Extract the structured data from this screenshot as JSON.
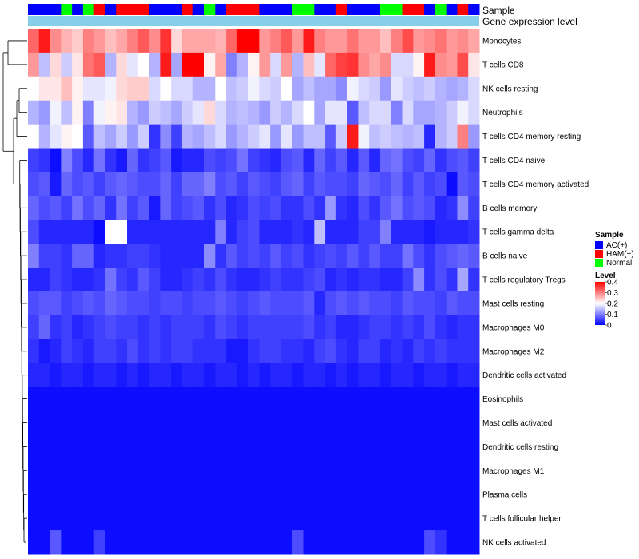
{
  "chart_data": {
    "type": "heatmap",
    "title": "",
    "annotations": {
      "sample_label": "Sample",
      "gene_label": "Gene expression level"
    },
    "sample_groups": [
      "AC",
      "AC",
      "AC",
      "Normal",
      "AC",
      "Normal",
      "HAM",
      "AC",
      "HAM",
      "HAM",
      "HAM",
      "AC",
      "AC",
      "AC",
      "HAM",
      "AC",
      "Normal",
      "AC",
      "HAM",
      "HAM",
      "HAM",
      "AC",
      "AC",
      "AC",
      "Normal",
      "Normal",
      "AC",
      "AC",
      "HAM",
      "AC",
      "AC",
      "AC",
      "Normal",
      "Normal",
      "HAM",
      "HAM",
      "AC",
      "Normal",
      "AC",
      "HAM",
      "AC"
    ],
    "sample_colors": {
      "AC": "#0000ff",
      "HAM": "#ff0000",
      "Normal": "#00ff00"
    },
    "gene_expression_color": "#87ceeb",
    "rows": [
      "Monocytes",
      "T cells CD8",
      "NK cells resting",
      "Neutrophils",
      "T cells CD4 memory resting",
      "T cells CD4 naive",
      "T cells CD4 memory activated",
      "B cells memory",
      "T cells gamma delta",
      "B cells naive",
      "T cells regulatory  Tregs",
      "Mast cells resting",
      "Macrophages M0",
      "Macrophages M2",
      "Dendritic cells activated",
      "Eosinophils",
      "Mast cells activated",
      "Dendritic cells resting",
      "Macrophages M1",
      "Plasma cells",
      "T cells follicular helper",
      "NK cells activated"
    ],
    "values": [
      [
        0.32,
        0.38,
        0.29,
        0.26,
        0.24,
        0.3,
        0.28,
        0.25,
        0.27,
        0.3,
        0.33,
        0.29,
        0.36,
        0.23,
        0.27,
        0.27,
        0.27,
        0.26,
        0.32,
        0.4,
        0.4,
        0.28,
        0.3,
        0.33,
        0.28,
        0.38,
        0.3,
        0.28,
        0.28,
        0.31,
        0.28,
        0.28,
        0.25,
        0.3,
        0.34,
        0.28,
        0.29,
        0.31,
        0.28,
        0.29,
        0.27
      ],
      [
        0.28,
        0.15,
        0.23,
        0.16,
        0.22,
        0.31,
        0.33,
        0.14,
        0.23,
        0.18,
        0.2,
        0.14,
        0.38,
        0.13,
        0.4,
        0.4,
        0.21,
        0.27,
        0.1,
        0.14,
        0.21,
        0.28,
        0.17,
        0.28,
        0.14,
        0.25,
        0.18,
        0.32,
        0.35,
        0.36,
        0.29,
        0.27,
        0.29,
        0.17,
        0.17,
        0.21,
        0.38,
        0.29,
        0.28,
        0.34,
        0.22
      ],
      [
        0.2,
        0.22,
        0.22,
        0.25,
        0.21,
        0.18,
        0.18,
        0.19,
        0.23,
        0.24,
        0.24,
        0.17,
        0.2,
        0.17,
        0.17,
        0.14,
        0.14,
        0.2,
        0.15,
        0.16,
        0.19,
        0.17,
        0.16,
        0.2,
        0.13,
        0.15,
        0.13,
        0.13,
        0.11,
        0.19,
        0.17,
        0.16,
        0.12,
        0.18,
        0.16,
        0.15,
        0.16,
        0.14,
        0.13,
        0.14,
        0.17
      ],
      [
        0.14,
        0.12,
        0.19,
        0.15,
        0.21,
        0.1,
        0.19,
        0.21,
        0.22,
        0.14,
        0.12,
        0.16,
        0.15,
        0.13,
        0.16,
        0.18,
        0.23,
        0.17,
        0.14,
        0.15,
        0.14,
        0.12,
        0.16,
        0.14,
        0.17,
        0.2,
        0.13,
        0.18,
        0.18,
        0.07,
        0.15,
        0.17,
        0.17,
        0.1,
        0.17,
        0.13,
        0.13,
        0.14,
        0.16,
        0.19,
        0.17
      ],
      [
        0.2,
        0.14,
        0.18,
        0.21,
        0.2,
        0.07,
        0.15,
        0.13,
        0.16,
        0.12,
        0.16,
        0.04,
        0.11,
        0.05,
        0.14,
        0.13,
        0.15,
        0.17,
        0.12,
        0.14,
        0.16,
        0.18,
        0.12,
        0.18,
        0.12,
        0.15,
        0.15,
        0.07,
        0.16,
        0.38,
        0.19,
        0.15,
        0.16,
        0.15,
        0.14,
        0.15,
        0.03,
        0.14,
        0.16,
        0.3,
        0.12
      ],
      [
        0.05,
        0.04,
        0.01,
        0.1,
        0.06,
        0.03,
        0.09,
        0.04,
        0.02,
        0.08,
        0.04,
        0.05,
        0.07,
        0.02,
        0.03,
        0.03,
        0.06,
        0.05,
        0.06,
        0.09,
        0.05,
        0.04,
        0.03,
        0.06,
        0.07,
        0.03,
        0.08,
        0.05,
        0.07,
        0.03,
        0.07,
        0.03,
        0.08,
        0.09,
        0.06,
        0.05,
        0.08,
        0.04,
        0.06,
        0.07,
        0.05
      ],
      [
        0.06,
        0.07,
        0.02,
        0.08,
        0.06,
        0.07,
        0.05,
        0.07,
        0.08,
        0.07,
        0.06,
        0.06,
        0.08,
        0.05,
        0.08,
        0.08,
        0.1,
        0.06,
        0.07,
        0.05,
        0.07,
        0.06,
        0.05,
        0.07,
        0.08,
        0.05,
        0.07,
        0.06,
        0.06,
        0.05,
        0.08,
        0.07,
        0.06,
        0.08,
        0.05,
        0.07,
        0.05,
        0.06,
        0.01,
        0.07,
        0.06
      ],
      [
        0.08,
        0.06,
        0.07,
        0.05,
        0.09,
        0.06,
        0.08,
        0.04,
        0.09,
        0.05,
        0.07,
        0.02,
        0.08,
        0.05,
        0.06,
        0.07,
        0.04,
        0.06,
        0.03,
        0.04,
        0.06,
        0.05,
        0.06,
        0.04,
        0.04,
        0.06,
        0.04,
        0.12,
        0.04,
        0.03,
        0.06,
        0.04,
        0.07,
        0.09,
        0.06,
        0.07,
        0.06,
        0.03,
        0.04,
        0.11,
        0.05
      ],
      [
        0.06,
        0.03,
        0.03,
        0.03,
        0.03,
        0.03,
        0.01,
        0.2,
        0.2,
        0.03,
        0.03,
        0.03,
        0.03,
        0.03,
        0.03,
        0.03,
        0.03,
        0.1,
        0.03,
        0.05,
        0.06,
        0.03,
        0.03,
        0.03,
        0.04,
        0.03,
        0.15,
        0.03,
        0.03,
        0.03,
        0.05,
        0.05,
        0.1,
        0.03,
        0.03,
        0.03,
        0.02,
        0.03,
        0.03,
        0.03,
        0.04
      ],
      [
        0.1,
        0.05,
        0.05,
        0.04,
        0.08,
        0.08,
        0.03,
        0.04,
        0.04,
        0.05,
        0.05,
        0.04,
        0.03,
        0.03,
        0.03,
        0.03,
        0.11,
        0.04,
        0.07,
        0.05,
        0.06,
        0.05,
        0.07,
        0.05,
        0.06,
        0.04,
        0.05,
        0.06,
        0.05,
        0.07,
        0.05,
        0.07,
        0.05,
        0.05,
        0.09,
        0.06,
        0.04,
        0.06,
        0.07,
        0.08,
        0.07
      ],
      [
        0.03,
        0.03,
        0.05,
        0.04,
        0.03,
        0.03,
        0.04,
        0.09,
        0.05,
        0.04,
        0.07,
        0.05,
        0.03,
        0.03,
        0.04,
        0.05,
        0.04,
        0.06,
        0.04,
        0.03,
        0.03,
        0.04,
        0.05,
        0.04,
        0.04,
        0.05,
        0.06,
        0.03,
        0.04,
        0.03,
        0.04,
        0.04,
        0.03,
        0.03,
        0.05,
        0.11,
        0.04,
        0.06,
        0.04,
        0.13,
        0.04
      ],
      [
        0.06,
        0.07,
        0.07,
        0.05,
        0.06,
        0.07,
        0.06,
        0.08,
        0.07,
        0.06,
        0.06,
        0.05,
        0.06,
        0.06,
        0.05,
        0.06,
        0.06,
        0.07,
        0.06,
        0.05,
        0.06,
        0.07,
        0.06,
        0.06,
        0.06,
        0.07,
        0.03,
        0.06,
        0.07,
        0.06,
        0.07,
        0.06,
        0.06,
        0.05,
        0.07,
        0.06,
        0.06,
        0.05,
        0.07,
        0.06,
        0.06
      ],
      [
        0.05,
        0.08,
        0.04,
        0.05,
        0.03,
        0.04,
        0.05,
        0.06,
        0.05,
        0.05,
        0.04,
        0.05,
        0.04,
        0.05,
        0.05,
        0.05,
        0.04,
        0.06,
        0.05,
        0.04,
        0.05,
        0.05,
        0.05,
        0.05,
        0.05,
        0.06,
        0.04,
        0.05,
        0.03,
        0.03,
        0.04,
        0.05,
        0.05,
        0.04,
        0.05,
        0.04,
        0.06,
        0.04,
        0.03,
        0.04,
        0.04
      ],
      [
        0.04,
        0.02,
        0.03,
        0.05,
        0.04,
        0.03,
        0.05,
        0.05,
        0.04,
        0.06,
        0.04,
        0.05,
        0.04,
        0.05,
        0.05,
        0.04,
        0.04,
        0.04,
        0.02,
        0.02,
        0.04,
        0.05,
        0.05,
        0.04,
        0.04,
        0.03,
        0.05,
        0.06,
        0.04,
        0.03,
        0.05,
        0.05,
        0.03,
        0.04,
        0.03,
        0.05,
        0.04,
        0.05,
        0.04,
        0.04,
        0.04
      ],
      [
        0.03,
        0.03,
        0.02,
        0.03,
        0.03,
        0.02,
        0.03,
        0.03,
        0.02,
        0.03,
        0.02,
        0.03,
        0.03,
        0.02,
        0.03,
        0.03,
        0.02,
        0.03,
        0.03,
        0.02,
        0.03,
        0.02,
        0.03,
        0.03,
        0.02,
        0.03,
        0.03,
        0.02,
        0.03,
        0.02,
        0.03,
        0.03,
        0.02,
        0.03,
        0.03,
        0.02,
        0.03,
        0.03,
        0.02,
        0.03,
        0.03
      ],
      [
        0.01,
        0.01,
        0.01,
        0.01,
        0.01,
        0.01,
        0.01,
        0.01,
        0.01,
        0.01,
        0.01,
        0.01,
        0.01,
        0.01,
        0.01,
        0.01,
        0.01,
        0.01,
        0.01,
        0.01,
        0.01,
        0.01,
        0.01,
        0.01,
        0.01,
        0.01,
        0.01,
        0.01,
        0.01,
        0.01,
        0.01,
        0.01,
        0.01,
        0.01,
        0.01,
        0.01,
        0.01,
        0.01,
        0.01,
        0.01,
        0.01
      ],
      [
        0.01,
        0.01,
        0.01,
        0.01,
        0.01,
        0.01,
        0.01,
        0.01,
        0.01,
        0.01,
        0.01,
        0.01,
        0.01,
        0.01,
        0.01,
        0.01,
        0.01,
        0.01,
        0.01,
        0.01,
        0.01,
        0.01,
        0.01,
        0.01,
        0.01,
        0.01,
        0.01,
        0.01,
        0.01,
        0.01,
        0.01,
        0.01,
        0.01,
        0.01,
        0.01,
        0.01,
        0.01,
        0.01,
        0.01,
        0.01,
        0.01
      ],
      [
        0.01,
        0.01,
        0.01,
        0.01,
        0.01,
        0.01,
        0.01,
        0.01,
        0.01,
        0.01,
        0.01,
        0.01,
        0.01,
        0.01,
        0.01,
        0.01,
        0.01,
        0.01,
        0.01,
        0.01,
        0.01,
        0.01,
        0.01,
        0.01,
        0.01,
        0.01,
        0.01,
        0.01,
        0.01,
        0.01,
        0.01,
        0.01,
        0.01,
        0.01,
        0.01,
        0.01,
        0.01,
        0.01,
        0.01,
        0.01,
        0.01
      ],
      [
        0.01,
        0.01,
        0.01,
        0.01,
        0.01,
        0.01,
        0.01,
        0.01,
        0.01,
        0.01,
        0.01,
        0.01,
        0.01,
        0.01,
        0.01,
        0.01,
        0.01,
        0.01,
        0.01,
        0.01,
        0.01,
        0.01,
        0.01,
        0.01,
        0.01,
        0.01,
        0.01,
        0.01,
        0.01,
        0.01,
        0.01,
        0.01,
        0.01,
        0.01,
        0.01,
        0.01,
        0.01,
        0.01,
        0.01,
        0.01,
        0.01
      ],
      [
        0.01,
        0.01,
        0.01,
        0.01,
        0.01,
        0.01,
        0.01,
        0.01,
        0.01,
        0.01,
        0.01,
        0.01,
        0.01,
        0.01,
        0.01,
        0.01,
        0.01,
        0.01,
        0.01,
        0.01,
        0.01,
        0.01,
        0.01,
        0.01,
        0.01,
        0.01,
        0.01,
        0.01,
        0.01,
        0.01,
        0.01,
        0.01,
        0.01,
        0.01,
        0.01,
        0.01,
        0.01,
        0.01,
        0.01,
        0.01,
        0.01
      ],
      [
        0.01,
        0.01,
        0.01,
        0.01,
        0.01,
        0.01,
        0.01,
        0.01,
        0.01,
        0.01,
        0.01,
        0.01,
        0.01,
        0.01,
        0.01,
        0.01,
        0.01,
        0.01,
        0.01,
        0.01,
        0.01,
        0.01,
        0.01,
        0.01,
        0.01,
        0.01,
        0.01,
        0.01,
        0.01,
        0.01,
        0.01,
        0.01,
        0.01,
        0.01,
        0.01,
        0.01,
        0.01,
        0.01,
        0.01,
        0.01,
        0.01
      ],
      [
        0.01,
        0.01,
        0.07,
        0.01,
        0.01,
        0.01,
        0.05,
        0.01,
        0.01,
        0.01,
        0.01,
        0.01,
        0.01,
        0.01,
        0.01,
        0.01,
        0.01,
        0.01,
        0.01,
        0.01,
        0.01,
        0.01,
        0.01,
        0.01,
        0.06,
        0.01,
        0.01,
        0.01,
        0.01,
        0.01,
        0.01,
        0.01,
        0.01,
        0.01,
        0.01,
        0.01,
        0.06,
        0.04,
        0.01,
        0.01,
        0.01
      ]
    ],
    "color_scale": {
      "min": 0,
      "max": 0.4,
      "low": "#0000ff",
      "mid": "#ffffff",
      "high": "#ff0000"
    },
    "legend": {
      "sample_title": "Sample",
      "sample_entries": [
        {
          "label": "AC(+)",
          "color": "#0000ff"
        },
        {
          "label": "HAM(+)",
          "color": "#ff0000"
        },
        {
          "label": "Normal",
          "color": "#00ff00"
        }
      ],
      "level_title": "Level",
      "level_ticks": [
        "0.4",
        "0.3",
        "0.2",
        "0.1",
        "0"
      ],
      "placement": "right"
    }
  }
}
